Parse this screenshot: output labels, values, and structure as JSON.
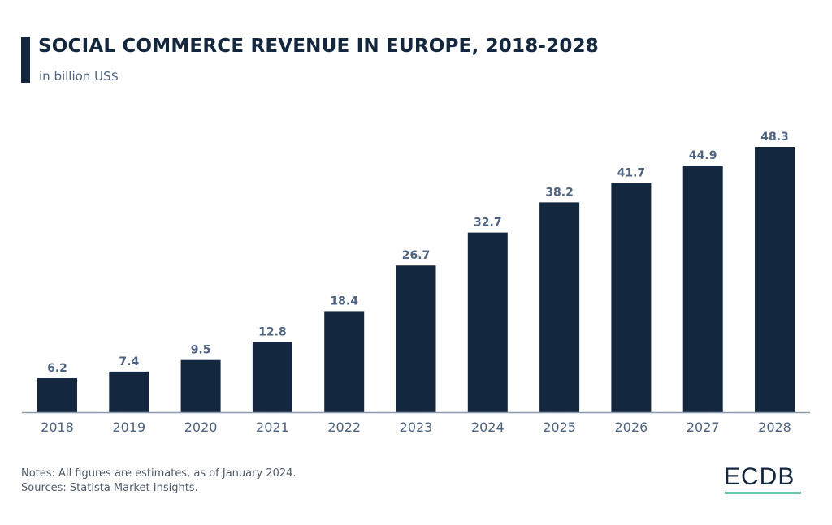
{
  "header": {
    "title": "SOCIAL COMMERCE REVENUE IN EUROPE, 2018-2028",
    "subtitle": "in billion US$"
  },
  "footer": {
    "notes": "Notes: All figures are estimates, as of January 2024.",
    "sources": "Sources: Statista Market Insights.",
    "logo": "ECDB"
  },
  "colors": {
    "bar": "#13273f",
    "label": "#4d6484",
    "axis": "#8a9bb0",
    "logo_underline": "#6cc6ac"
  },
  "chart_data": {
    "type": "bar",
    "title": "SOCIAL COMMERCE REVENUE IN EUROPE, 2018-2028",
    "subtitle": "in billion US$",
    "xlabel": "",
    "ylabel": "",
    "categories": [
      "2018",
      "2019",
      "2020",
      "2021",
      "2022",
      "2023",
      "2024",
      "2025",
      "2026",
      "2027",
      "2028"
    ],
    "values": [
      6.2,
      7.4,
      9.5,
      12.8,
      18.4,
      26.7,
      32.7,
      38.2,
      41.7,
      44.9,
      48.3
    ],
    "value_labels": [
      "6.2",
      "7.4",
      "9.5",
      "12.8",
      "18.4",
      "26.7",
      "32.7",
      "38.2",
      "41.7",
      "44.9",
      "48.3"
    ],
    "ylim": [
      0,
      48.3
    ],
    "grid": false,
    "legend": "none"
  }
}
